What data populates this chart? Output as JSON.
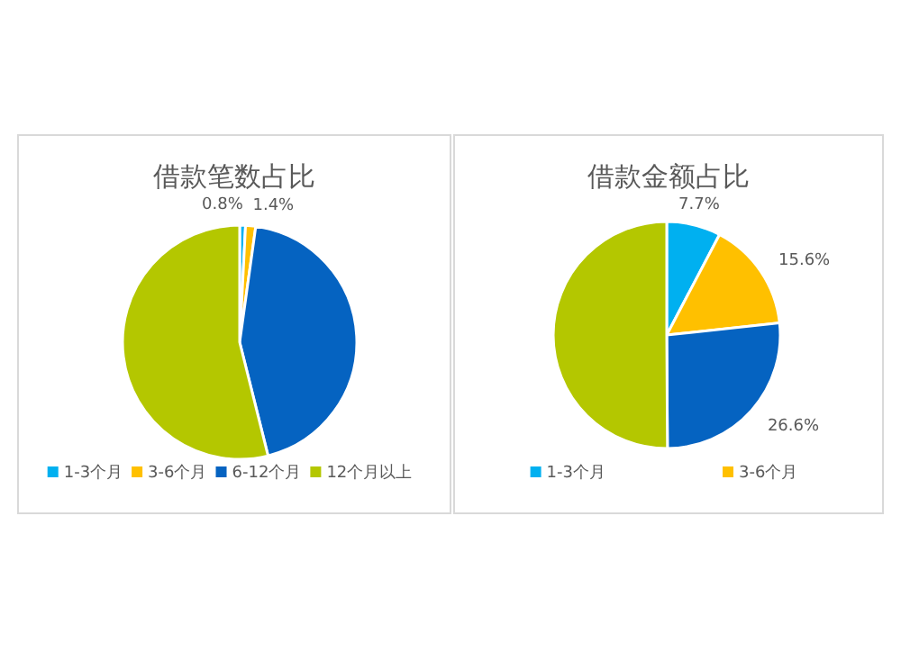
{
  "chart_data": [
    {
      "type": "pie",
      "title": "借款笔数占比",
      "categories": [
        "1-3个月",
        "3-6个月",
        "6-12个月",
        "12个月以上"
      ],
      "values": [
        0.8,
        1.4,
        43.9,
        53.9
      ],
      "colors": [
        "#00b0f0",
        "#ffc000",
        "#0563c1",
        "#b4c700"
      ],
      "value_labels": [
        "0.8%",
        "1.4%",
        null,
        null
      ],
      "legend": "bottom"
    },
    {
      "type": "pie",
      "title": "借款金额占比",
      "categories": [
        "1-3个月",
        "3-6个月",
        null,
        null
      ],
      "values": [
        7.7,
        15.6,
        26.6,
        50.1
      ],
      "colors": [
        "#00b0f0",
        "#ffc000",
        "#0563c1",
        "#b4c700"
      ],
      "value_labels": [
        "7.7%",
        "15.6%",
        "26.6%",
        null
      ],
      "legend": "bottom"
    }
  ]
}
